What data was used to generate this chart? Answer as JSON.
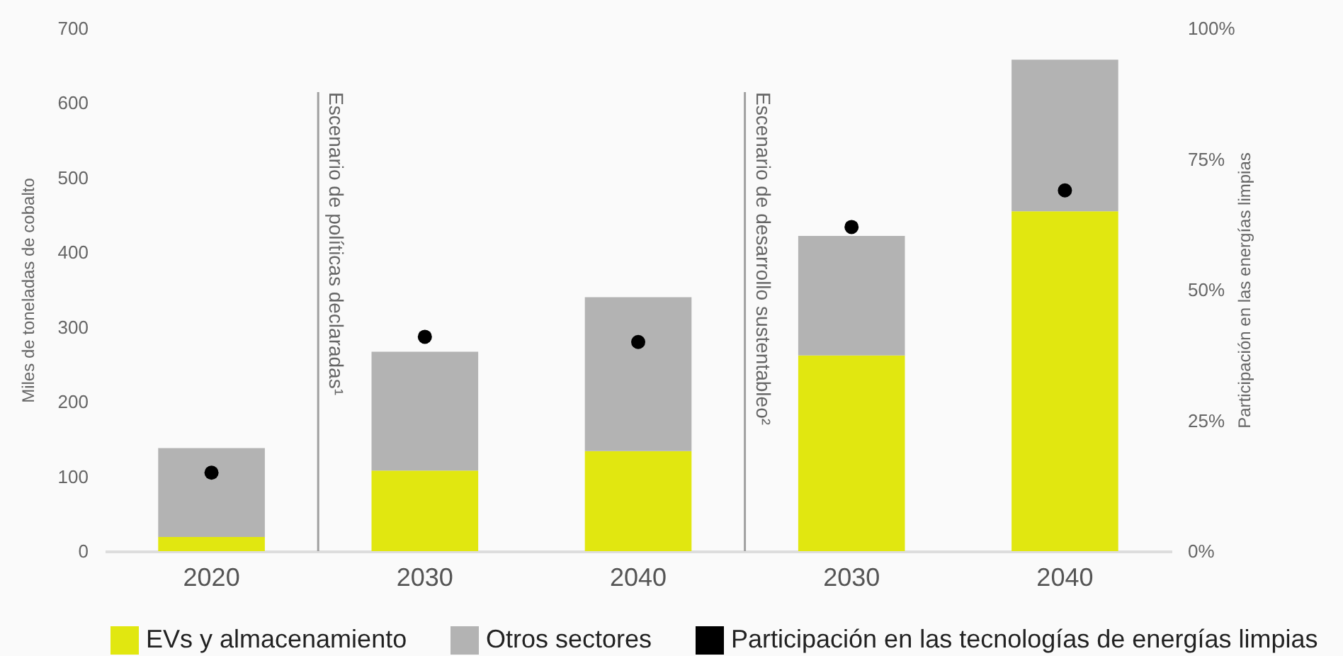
{
  "chart_data": {
    "type": "bar",
    "stacked": true,
    "categories": [
      "2020",
      "2030",
      "2040",
      "2030",
      "2040"
    ],
    "series": [
      {
        "name": "EVs y almacenamiento",
        "color": "#e1e710",
        "values": [
          19,
          108,
          134,
          262,
          455
        ]
      },
      {
        "name": "Otros sectores",
        "color": "#b3b3b3",
        "values": [
          119,
          159,
          206,
          160,
          203
        ]
      },
      {
        "name": "Participación en las tecnologías de energías limpias",
        "type": "scatter",
        "axis": "y2",
        "marker": "circle",
        "color": "#000000",
        "values": [
          15,
          41,
          40,
          62,
          69
        ]
      }
    ],
    "ylabel": "Miles de toneladas de cobalto",
    "y2label": "Participación en las energías limpias",
    "ylim": [
      0,
      700
    ],
    "yticks": [
      0,
      100,
      200,
      300,
      400,
      500,
      600,
      700
    ],
    "y2lim": [
      0,
      100
    ],
    "y2ticks": [
      {
        "value": 0,
        "label": "0%"
      },
      {
        "value": 25,
        "label": "25%"
      },
      {
        "value": 50,
        "label": "50%"
      },
      {
        "value": 75,
        "label": "75%"
      },
      {
        "value": 100,
        "label": "100%"
      }
    ],
    "annotations": [
      "Escenario de políticas declaradas¹",
      "Escenario de desarrollo sustentableo²"
    ],
    "legend": "bottom"
  }
}
